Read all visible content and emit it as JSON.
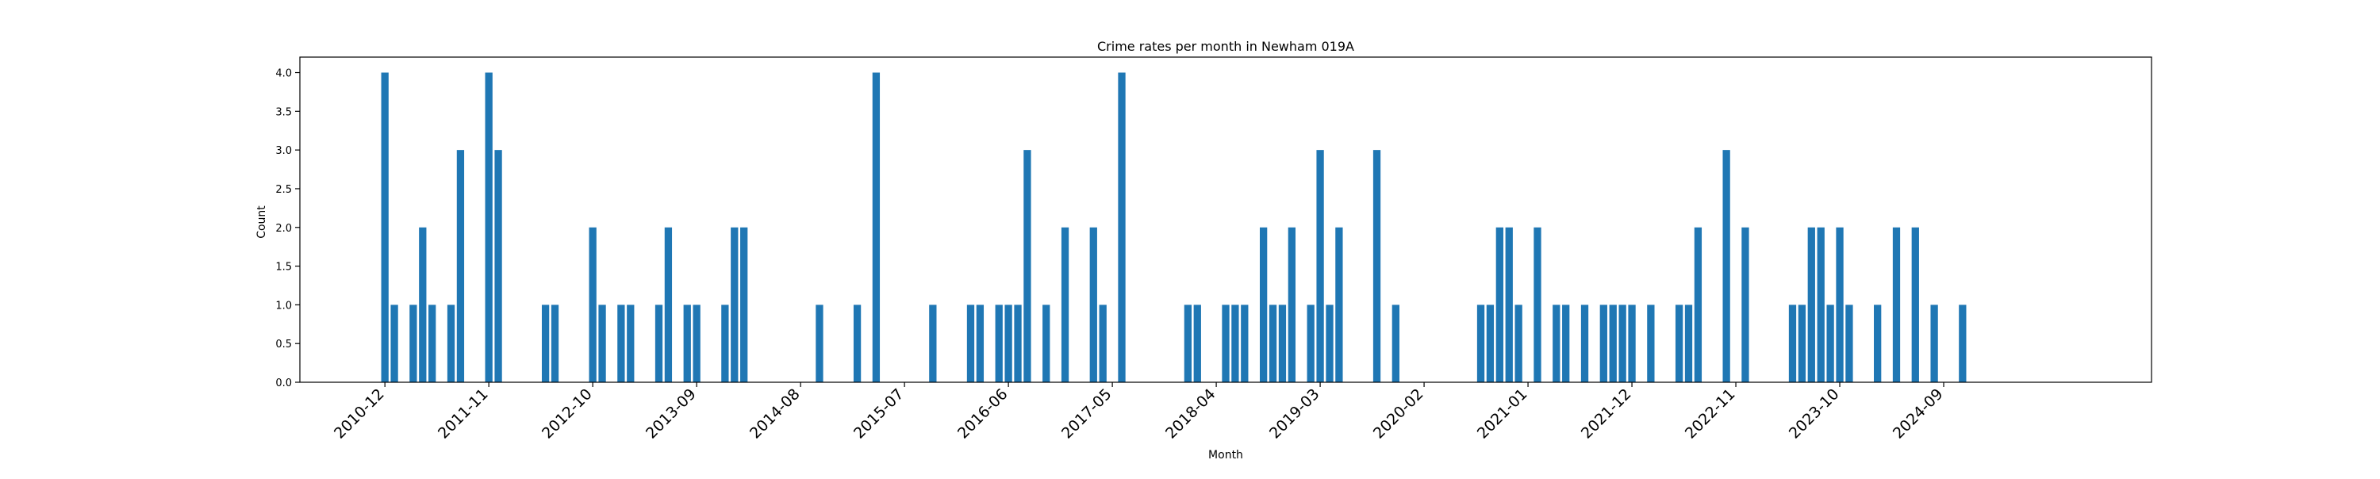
{
  "chart_data": {
    "type": "bar",
    "title": "Crime rates per month in Newham 019A",
    "xlabel": "Month",
    "ylabel": "Count",
    "ylim": [
      0,
      4.2
    ],
    "yticks": [
      "0.0",
      "0.5",
      "1.0",
      "1.5",
      "2.0",
      "2.5",
      "3.0",
      "3.5",
      "4.0"
    ],
    "xlim": [
      "2010-03",
      "2026-07"
    ],
    "xticks": [
      "2010-12",
      "2011-11",
      "2012-10",
      "2013-09",
      "2014-08",
      "2015-07",
      "2016-06",
      "2017-05",
      "2018-04",
      "2019-03",
      "2020-02",
      "2021-01",
      "2021-12",
      "2022-11",
      "2023-10",
      "2024-09"
    ],
    "bar_color": "#1f77b4",
    "grid": false,
    "x": [
      "2010-12",
      "2011-01",
      "2011-03",
      "2011-04",
      "2011-05",
      "2011-07",
      "2011-08",
      "2011-11",
      "2011-12",
      "2012-05",
      "2012-06",
      "2012-10",
      "2012-11",
      "2013-01",
      "2013-02",
      "2013-05",
      "2013-06",
      "2013-08",
      "2013-09",
      "2013-12",
      "2014-01",
      "2014-02",
      "2014-10",
      "2015-02",
      "2015-04",
      "2015-10",
      "2016-02",
      "2016-03",
      "2016-05",
      "2016-06",
      "2016-07",
      "2016-08",
      "2016-10",
      "2016-12",
      "2017-03",
      "2017-04",
      "2017-06",
      "2018-01",
      "2018-02",
      "2018-05",
      "2018-06",
      "2018-07",
      "2018-09",
      "2018-10",
      "2018-11",
      "2018-12",
      "2019-02",
      "2019-03",
      "2019-04",
      "2019-05",
      "2019-09",
      "2019-11",
      "2020-08",
      "2020-09",
      "2020-10",
      "2020-11",
      "2020-12",
      "2021-02",
      "2021-04",
      "2021-05",
      "2021-07",
      "2021-09",
      "2021-10",
      "2021-11",
      "2021-12",
      "2022-02",
      "2022-05",
      "2022-06",
      "2022-07",
      "2022-10",
      "2022-12",
      "2023-05",
      "2023-06",
      "2023-07",
      "2023-08",
      "2023-09",
      "2023-10",
      "2023-11",
      "2024-02",
      "2024-04",
      "2024-06",
      "2024-08",
      "2024-11"
    ],
    "values": [
      4,
      1,
      1,
      2,
      1,
      1,
      3,
      4,
      3,
      1,
      1,
      2,
      1,
      1,
      1,
      1,
      2,
      1,
      1,
      1,
      2,
      2,
      1,
      1,
      4,
      1,
      1,
      1,
      1,
      1,
      1,
      3,
      1,
      2,
      2,
      1,
      4,
      1,
      1,
      1,
      1,
      1,
      2,
      1,
      1,
      2,
      1,
      3,
      1,
      2,
      3,
      1,
      1,
      1,
      2,
      2,
      1,
      2,
      1,
      1,
      1,
      1,
      1,
      1,
      1,
      1,
      1,
      1,
      2,
      3,
      2,
      1,
      1,
      2,
      2,
      1,
      2,
      1,
      1,
      2,
      2,
      1,
      1
    ]
  }
}
